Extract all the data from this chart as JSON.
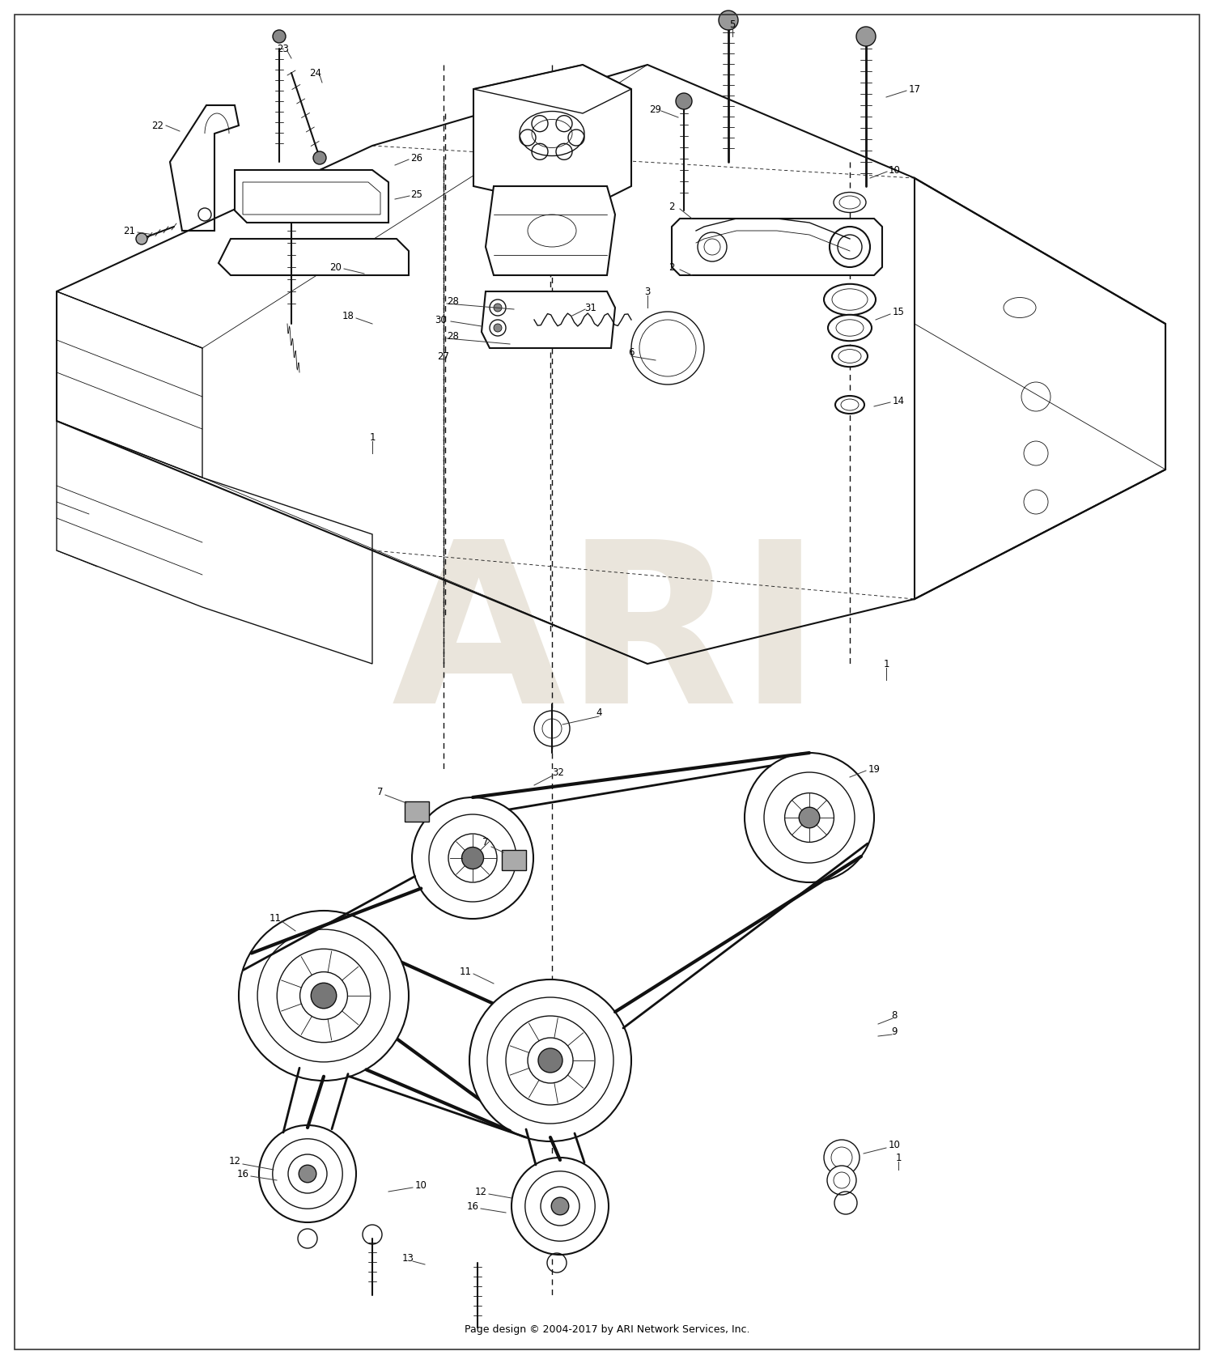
{
  "footer": "Page design © 2004-2017 by ARI Network Services, Inc.",
  "bg": "#ffffff",
  "wm_color": "#ccc0a8",
  "fig_w": 15.0,
  "fig_h": 16.85,
  "border_color": "#222222",
  "line_color": "#111111",
  "label_fs": 8.5,
  "footer_fs": 9.0
}
